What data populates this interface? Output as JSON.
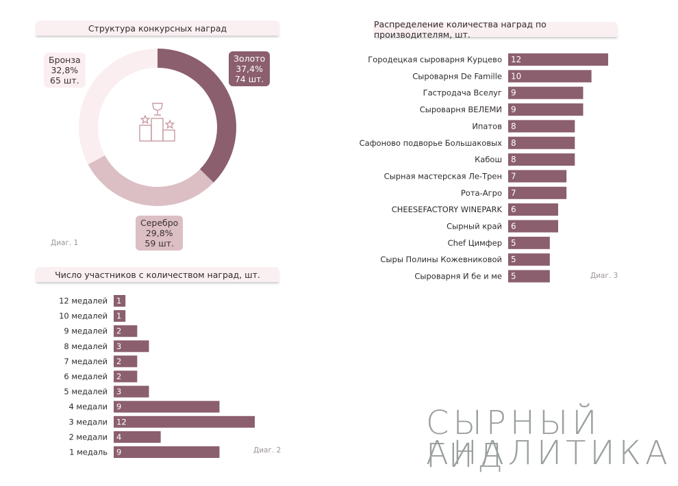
{
  "colors": {
    "gold": "#8b5f6d",
    "silver": "#dbbfc4",
    "bronze": "#fbeef1",
    "bar": "#8b5f6d",
    "icon": "#c89aa2"
  },
  "chart_data": [
    {
      "type": "pie",
      "title": "Структура конкурсных наград",
      "footnote": "Диаг. 1",
      "slices": [
        {
          "name": "Золото",
          "pct_label": "37,4%",
          "count_label": "74 шт.",
          "value": 37.4
        },
        {
          "name": "Серебро",
          "pct_label": "29,8%",
          "count_label": "59 шт.",
          "value": 29.8
        },
        {
          "name": "Бронза",
          "pct_label": "32,8%",
          "count_label": "65 шт.",
          "value": 32.8
        }
      ]
    },
    {
      "type": "bar",
      "orientation": "horizontal",
      "title": "Число участников с количеством наград, шт.",
      "footnote": "Диаг. 2",
      "categories": [
        "12 медалей",
        "10 медалей",
        "9 медалей",
        "8 медалей",
        "7 медалей",
        "6 медалей",
        "5 медалей",
        "4 медали",
        "3 медали",
        "2 медали",
        "1 медаль"
      ],
      "values": [
        1,
        1,
        2,
        3,
        2,
        2,
        3,
        9,
        12,
        4,
        9
      ]
    },
    {
      "type": "bar",
      "orientation": "horizontal",
      "title": "Распределение количества наград по производителям, шт.",
      "footnote": "Диаг. 3",
      "categories": [
        "Городецкая сыроварня Курцево",
        "Сыроварня De Famille",
        "Гастродача Вселуг",
        "Сыроварня ВЕЛЕМИ",
        "Ипатов",
        "Сафоново подворье Большаковых",
        "Кабош",
        "Сырная мастерская Ле-Трен",
        "Рота-Агро",
        "CHEESEFACTORY WINEPARK",
        "Сырный край",
        "Chef Цимфер",
        "Сыры Полины Кожевниковой",
        "Сыроварня И бе и ме"
      ],
      "values": [
        12,
        10,
        9,
        9,
        8,
        8,
        8,
        7,
        7,
        6,
        6,
        5,
        5,
        5
      ]
    }
  ],
  "brand": {
    "line1": "СЫРНЫЙ ГИД",
    "line2": "АНАЛИТИКА"
  }
}
